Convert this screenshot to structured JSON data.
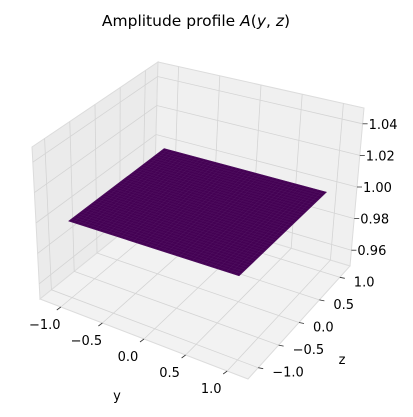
{
  "chart_data": {
    "type": "surface",
    "title": "Amplitude profile A(y, z)",
    "xlabel": "y",
    "ylabel": "z",
    "zlabel": "",
    "x_ticks": [
      "−1.0",
      "−0.5",
      "0.0",
      "0.5",
      "1.0"
    ],
    "y_ticks": [
      "−1.0",
      "−0.5",
      "0.0",
      "0.5",
      "1.0"
    ],
    "z_ticks": [
      "0.96",
      "0.98",
      "1.00",
      "1.02",
      "1.04"
    ],
    "xlim": [
      -1.25,
      1.25
    ],
    "ylim": [
      -1.25,
      1.25
    ],
    "zlim": [
      0.95,
      1.05
    ],
    "surface": {
      "y_range": [
        -1.0,
        1.0
      ],
      "z_range": [
        -1.0,
        1.0
      ],
      "value": 1.0,
      "color": "#440154",
      "edge_color": "#5a1f6a"
    },
    "grid": true,
    "pane_color": "#f2f2f2"
  }
}
